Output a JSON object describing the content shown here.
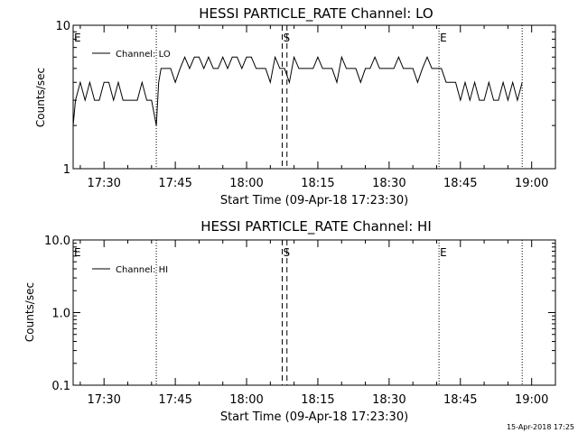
{
  "chart_data": [
    {
      "type": "line",
      "title": "HESSI PARTICLE_RATE Channel: LO",
      "xlabel": "Start Time (09-Apr-18 17:23:30)",
      "ylabel": "Counts/sec",
      "y_scale": "log",
      "ylim": [
        1,
        10
      ],
      "y_ticks": [
        "1",
        "10"
      ],
      "xlim": [
        "17:23:30",
        "19:05:00"
      ],
      "x_ticks": [
        "17:30",
        "17:45",
        "18:00",
        "18:15",
        "18:30",
        "18:45",
        "19:00"
      ],
      "grid": false,
      "legend": {
        "position": "top-left",
        "entries": [
          "Channel: LO"
        ]
      },
      "markers": [
        {
          "label": "E",
          "time": "17:23:30",
          "style": "dotted"
        },
        {
          "label": "",
          "time": "17:41:00",
          "style": "dotted"
        },
        {
          "label": "S",
          "time": "18:07:30",
          "style": "dashed"
        },
        {
          "label": "",
          "time": "18:08:30",
          "style": "dashed"
        },
        {
          "label": "E",
          "time": "18:40:30",
          "style": "dotted"
        },
        {
          "label": "",
          "time": "18:58:00",
          "style": "dotted"
        }
      ],
      "series": [
        {
          "name": "Channel: LO",
          "x": [
            "17:23:30",
            "17:24",
            "17:25",
            "17:26",
            "17:27",
            "17:28",
            "17:29",
            "17:30",
            "17:31",
            "17:32",
            "17:33",
            "17:34",
            "17:35",
            "17:36",
            "17:37",
            "17:38",
            "17:39",
            "17:40",
            "17:41",
            "17:41:30",
            "17:42",
            "17:43",
            "17:44",
            "17:45",
            "17:46",
            "17:47",
            "17:48",
            "17:49",
            "17:50",
            "17:51",
            "17:52",
            "17:53",
            "17:54",
            "17:55",
            "17:56",
            "17:57",
            "17:58",
            "17:59",
            "18:00",
            "18:01",
            "18:02",
            "18:03",
            "18:04",
            "18:05",
            "18:06",
            "18:07",
            "18:08",
            "18:09",
            "18:10",
            "18:11",
            "18:12",
            "18:13",
            "18:14",
            "18:15",
            "18:16",
            "18:17",
            "18:18",
            "18:19",
            "18:20",
            "18:21",
            "18:22",
            "18:23",
            "18:24",
            "18:25",
            "18:26",
            "18:27",
            "18:28",
            "18:29",
            "18:30",
            "18:31",
            "18:32",
            "18:33",
            "18:34",
            "18:35",
            "18:36",
            "18:37",
            "18:38",
            "18:39",
            "18:40",
            "18:41",
            "18:42",
            "18:43",
            "18:44",
            "18:45",
            "18:46",
            "18:47",
            "18:48",
            "18:49",
            "18:50",
            "18:51",
            "18:52",
            "18:53",
            "18:54",
            "18:55",
            "18:56",
            "18:57",
            "18:58"
          ],
          "values": [
            2,
            3,
            4,
            3,
            4,
            3,
            3,
            4,
            4,
            3,
            4,
            3,
            3,
            3,
            3,
            4,
            3,
            3,
            2,
            4,
            5,
            5,
            5,
            4,
            5,
            6,
            5,
            6,
            6,
            5,
            6,
            5,
            5,
            6,
            5,
            6,
            6,
            5,
            6,
            6,
            5,
            5,
            5,
            4,
            6,
            5,
            5,
            4,
            6,
            5,
            5,
            5,
            5,
            6,
            5,
            5,
            5,
            4,
            6,
            5,
            5,
            5,
            4,
            5,
            5,
            6,
            5,
            5,
            5,
            5,
            6,
            5,
            5,
            5,
            4,
            5,
            6,
            5,
            5,
            5,
            4,
            4,
            4,
            3,
            4,
            3,
            4,
            3,
            3,
            4,
            3,
            3,
            4,
            3,
            4,
            3,
            4
          ]
        }
      ]
    },
    {
      "type": "line",
      "title": "HESSI PARTICLE_RATE Channel: HI",
      "xlabel": "Start Time (09-Apr-18 17:23:30)",
      "ylabel": "Counts/sec",
      "y_scale": "log",
      "ylim": [
        0.1,
        10
      ],
      "y_ticks": [
        "0.1",
        "1.0",
        "10.0"
      ],
      "xlim": [
        "17:23:30",
        "19:05:00"
      ],
      "x_ticks": [
        "17:30",
        "17:45",
        "18:00",
        "18:15",
        "18:30",
        "18:45",
        "19:00"
      ],
      "grid": false,
      "legend": {
        "position": "top-left",
        "entries": [
          "Channel: HI"
        ]
      },
      "markers": [
        {
          "label": "E",
          "time": "17:23:30",
          "style": "dotted"
        },
        {
          "label": "",
          "time": "17:41:00",
          "style": "dotted"
        },
        {
          "label": "S",
          "time": "18:07:30",
          "style": "dashed"
        },
        {
          "label": "",
          "time": "18:08:30",
          "style": "dashed"
        },
        {
          "label": "E",
          "time": "18:40:30",
          "style": "dotted"
        },
        {
          "label": "",
          "time": "18:58:00",
          "style": "dotted"
        }
      ],
      "series": [
        {
          "name": "Channel: HI",
          "x": [],
          "values": []
        }
      ]
    }
  ],
  "footer": {
    "timestamp": "15-Apr-2018 17:25"
  }
}
